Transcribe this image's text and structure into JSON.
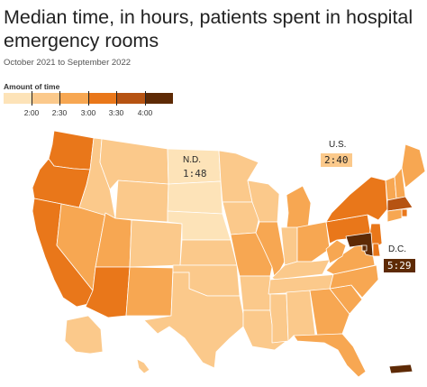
{
  "title": "Median time, in hours, patients spent in hospital emergency rooms",
  "subtitle": "October 2021 to September 2022",
  "legend": {
    "title": "Amount of time",
    "ticks": [
      "2:00",
      "2:30",
      "3:00",
      "3:30",
      "4:00"
    ],
    "colors": [
      "#fde3b8",
      "#fbc98b",
      "#f7a752",
      "#e9771a",
      "#b65312",
      "#5e2a05"
    ]
  },
  "callouts": [
    {
      "label": "N.D.",
      "value": "1:48",
      "color": "#fde3b8",
      "text_color": "#333333"
    },
    {
      "label": "U.S.",
      "value": "2:40",
      "color": "#fbc98b",
      "text_color": "#222222"
    },
    {
      "label": "D.C.",
      "value": "5:29",
      "color": "#5e2a05",
      "text_color": "#ffffff"
    }
  ],
  "map_data": {
    "bins": [
      "under 2:00",
      "2:00-2:30",
      "2:30-3:00",
      "3:00-3:30",
      "3:30-4:00",
      "over 4:00"
    ],
    "states": {
      "WA": 3,
      "OR": 3,
      "CA": 3,
      "NV": 2,
      "ID": 1,
      "MT": 1,
      "WY": 1,
      "UT": 2,
      "AZ": 3,
      "CO": 1,
      "NM": 2,
      "ND": 0,
      "SD": 0,
      "NE": 0,
      "KS": 1,
      "OK": 1,
      "TX": 1,
      "MN": 1,
      "IA": 1,
      "MO": 2,
      "AR": 1,
      "LA": 1,
      "WI": 1,
      "IL": 2,
      "MI": 2,
      "IN": 1,
      "OH": 2,
      "KY": 1,
      "TN": 1,
      "MS": 1,
      "AL": 1,
      "GA": 2,
      "FL": 2,
      "SC": 2,
      "NC": 2,
      "VA": 2,
      "WV": 2,
      "PA": 3,
      "NY": 3,
      "VT": 2,
      "NH": 2,
      "ME": 2,
      "MA": 4,
      "RI": 3,
      "CT": 2,
      "NJ": 3,
      "DE": 3,
      "MD": 5,
      "DC": 5,
      "AK": 1,
      "HI": 1,
      "PR": 5
    }
  }
}
